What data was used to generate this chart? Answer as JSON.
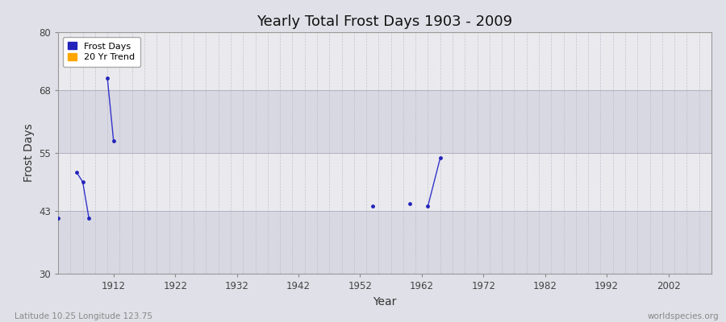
{
  "title": "Yearly Total Frost Days 1903 - 2009",
  "xlabel": "Year",
  "ylabel": "Frost Days",
  "subtitle_lat": "Latitude 10.25 Longitude 123.75",
  "credit": "worldspecies.org",
  "xlim": [
    1903,
    2009
  ],
  "ylim": [
    30,
    80
  ],
  "yticks": [
    30,
    43,
    55,
    68,
    80
  ],
  "xticks": [
    1912,
    1922,
    1932,
    1942,
    1952,
    1962,
    1972,
    1982,
    1992,
    2002
  ],
  "frost_years": [
    1903,
    1906,
    1907,
    1908,
    1911,
    1912,
    1954,
    1960,
    1963,
    1965
  ],
  "frost_values": [
    41.5,
    51.0,
    49.0,
    41.5,
    70.5,
    57.5,
    44.0,
    44.5,
    44.0,
    54.0
  ],
  "line_color": "#3333cc",
  "dot_color": "#2222bb",
  "bg_color_fig": "#e0e0e8",
  "bg_color_ax": "#e8e8ee",
  "band_boundaries": [
    30,
    43,
    55,
    68,
    80
  ],
  "band_colors": [
    "#d8d8e2",
    "#eaeaee",
    "#d8d8e2",
    "#eaeaee"
  ],
  "legend_frost_color": "#2222bb",
  "legend_trend_color": "#ffa500"
}
